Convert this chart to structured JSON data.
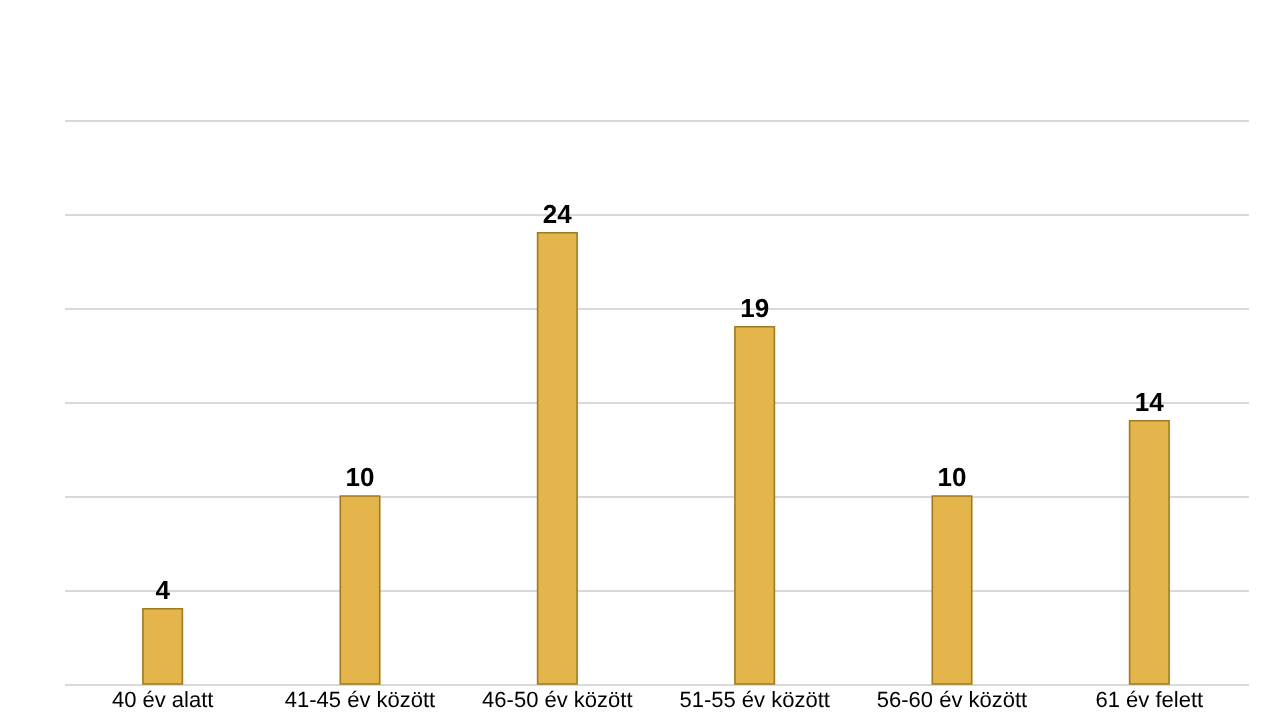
{
  "chart_data": {
    "type": "bar",
    "categories": [
      "40 év alatt",
      "41-45 év között",
      "46-50 év között",
      "51-55 év között",
      "56-60 év között",
      "61 év felett"
    ],
    "values": [
      4,
      10,
      24,
      19,
      10,
      14
    ],
    "color": "#e3b54a",
    "ylim": [
      0,
      30
    ],
    "yticks": [
      0,
      5,
      10,
      15,
      20,
      25,
      30
    ],
    "grid": "y",
    "data_labels": true,
    "tick_labels": "x"
  }
}
